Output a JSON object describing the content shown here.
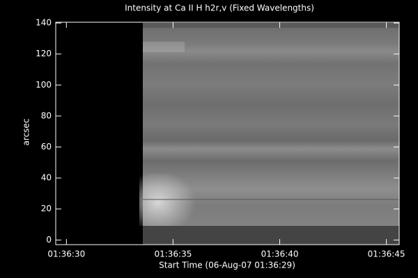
{
  "chart_data": {
    "type": "image",
    "title": "Intensity at Ca II H h2r,v (Fixed Wavelengths)",
    "xlabel": "Start Time (06-Aug-07 01:36:29)",
    "ylabel": "arcsec",
    "xlim": [
      5789.5,
      5805.6
    ],
    "xticks": [
      {
        "value": 5790,
        "label": "01:36:30"
      },
      {
        "value": 5795,
        "label": "01:36:35"
      },
      {
        "value": 5800,
        "label": "01:36:40"
      },
      {
        "value": 5805,
        "label": "01:36:45"
      }
    ],
    "ylim": [
      -3,
      140.5
    ],
    "yticks": [
      0,
      20,
      40,
      60,
      80,
      100,
      120,
      140
    ]
  }
}
